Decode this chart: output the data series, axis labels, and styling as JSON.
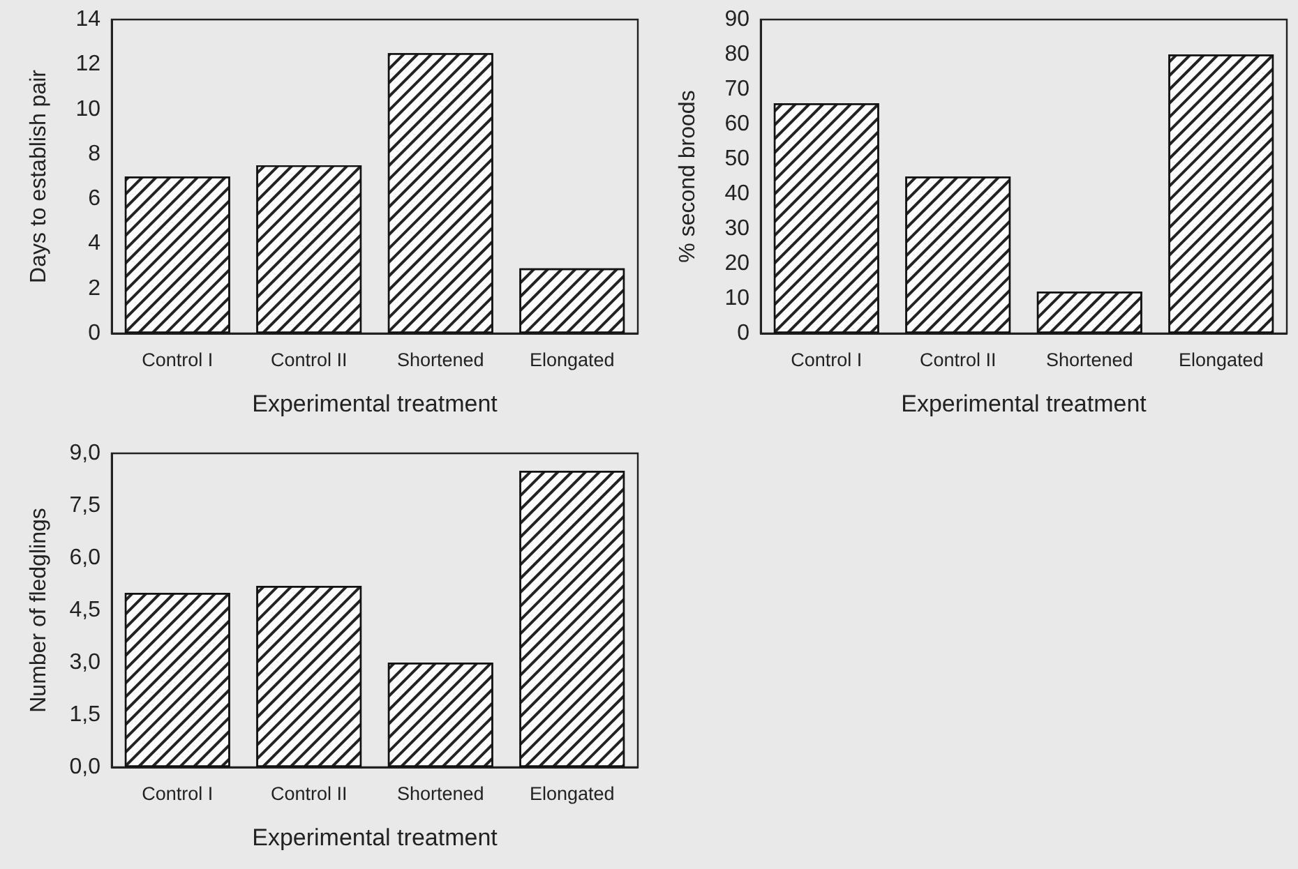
{
  "chart_data": [
    {
      "type": "bar",
      "xlabel": "Experimental treatment",
      "ylabel": "Days to establish pair",
      "categories": [
        "Control I",
        "Control II",
        "Shortened",
        "Elongated"
      ],
      "values": [
        7.0,
        7.5,
        12.5,
        2.9
      ],
      "color": "#ffffff",
      "ylim": [
        0,
        14
      ],
      "yticks": [
        0,
        2,
        4,
        6,
        8,
        10,
        12,
        14
      ]
    },
    {
      "type": "bar",
      "xlabel": "Experimental treatment",
      "ylabel": "% second broods",
      "categories": [
        "Control I",
        "Control II",
        "Shortened",
        "Elongated"
      ],
      "values": [
        66,
        45,
        12,
        80
      ],
      "color": "#ffffff",
      "ylim": [
        0,
        90
      ],
      "yticks": [
        0,
        10,
        20,
        30,
        40,
        50,
        60,
        70,
        80,
        90
      ]
    },
    {
      "type": "bar",
      "xlabel": "Experimental treatment",
      "ylabel": "Number of fledglings",
      "categories": [
        "Control I",
        "Control II",
        "Shortened",
        "Elongated"
      ],
      "values": [
        5.0,
        5.2,
        3.0,
        8.5
      ],
      "color": "#ffffff",
      "ylim": [
        0,
        9
      ],
      "yticks": [
        {
          "value": 0,
          "label": "0,0"
        },
        {
          "value": 1.5,
          "label": "1,5"
        },
        {
          "value": 3,
          "label": "3,0"
        },
        {
          "value": 4.5,
          "label": "4,5"
        },
        {
          "value": 6,
          "label": "6,0"
        },
        {
          "value": 7.5,
          "label": "7,5"
        },
        {
          "value": 9,
          "label": "9,0"
        }
      ]
    }
  ]
}
